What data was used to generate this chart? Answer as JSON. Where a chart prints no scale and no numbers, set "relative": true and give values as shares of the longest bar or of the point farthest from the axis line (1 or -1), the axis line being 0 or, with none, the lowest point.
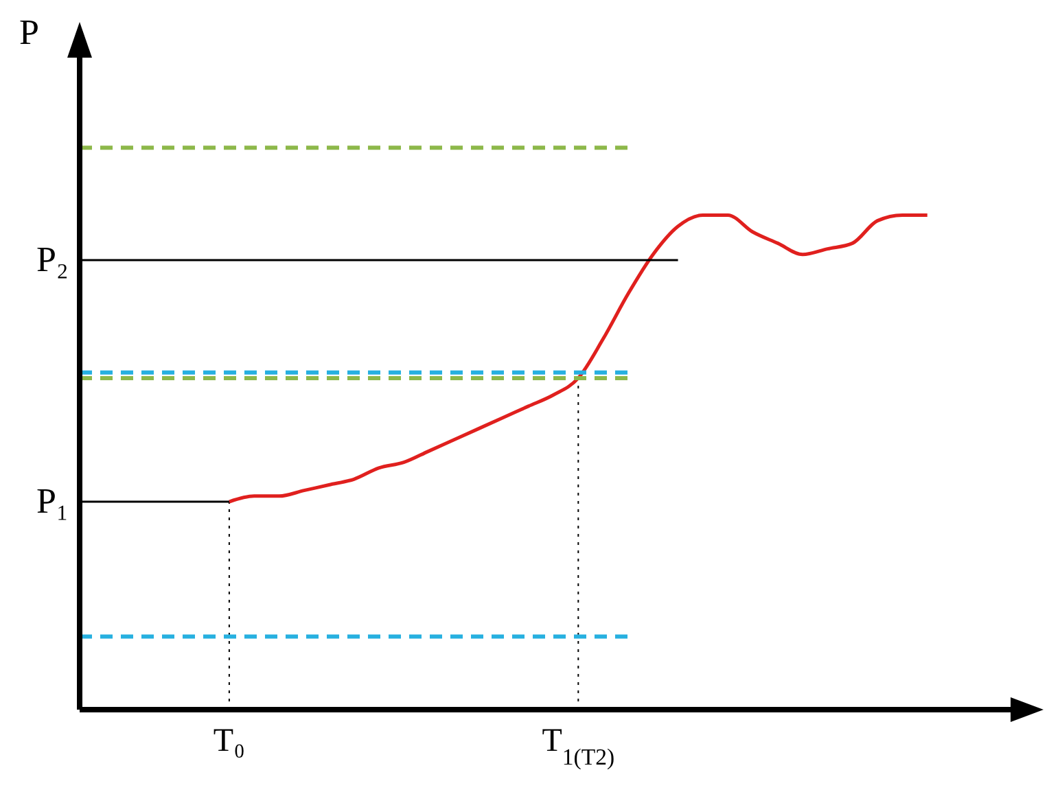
{
  "chart_data": {
    "type": "line",
    "relative": true,
    "marker": "none",
    "ylabel": "P",
    "categories": [
      null,
      null,
      null,
      null,
      null,
      null,
      "T₀",
      null,
      null,
      null,
      null,
      null,
      null,
      null,
      null,
      null,
      null,
      null,
      null,
      null,
      "T$_{1(T2)}$",
      null,
      null,
      null,
      null,
      null,
      null,
      null,
      null,
      null,
      null,
      null,
      null,
      null,
      null,
      null,
      null,
      null,
      null
    ],
    "series": [
      {
        "color": "#e0201e",
        "line_style": "solid",
        "values": [
          null,
          null,
          null,
          null,
          null,
          null,
          0.37,
          0.38,
          0.38,
          0.39,
          0.4,
          0.41,
          0.43,
          0.44,
          0.46,
          0.48,
          0.5,
          0.52,
          0.54,
          0.56,
          0.59,
          0.66,
          0.74,
          0.81,
          0.86,
          0.88,
          0.88,
          0.85,
          0.83,
          0.81,
          0.82,
          0.83,
          0.87,
          0.88,
          0.88,
          null,
          null,
          null,
          null
        ]
      },
      {
        "name": "P₁",
        "color": "#000000",
        "line_style": "solid",
        "values": [
          0.37,
          0.37,
          0.37,
          0.37,
          0.37,
          0.37,
          0.37,
          null,
          null,
          null,
          null,
          null,
          null,
          null,
          null,
          null,
          null,
          null,
          null,
          null,
          null,
          null,
          null,
          null,
          null,
          null,
          null,
          null,
          null,
          null,
          null,
          null,
          null,
          null,
          null,
          null,
          null,
          null,
          null
        ]
      },
      {
        "name": "P₂",
        "color": "#000000",
        "line_style": "solid",
        "values": [
          0.8,
          0.8,
          0.8,
          0.8,
          0.8,
          0.8,
          0.8,
          0.8,
          0.8,
          0.8,
          0.8,
          0.8,
          0.8,
          0.8,
          0.8,
          0.8,
          0.8,
          0.8,
          0.8,
          0.8,
          0.8,
          0.8,
          0.8,
          0.8,
          0.8,
          null,
          null,
          null,
          null,
          null,
          null,
          null,
          null,
          null,
          null,
          null,
          null,
          null,
          null
        ]
      },
      {
        "color": "#8db84a",
        "line_style": "dashed",
        "values": [
          1.0,
          1.0,
          1.0,
          1.0,
          1.0,
          1.0,
          1.0,
          1.0,
          1.0,
          1.0,
          1.0,
          1.0,
          1.0,
          1.0,
          1.0,
          1.0,
          1.0,
          1.0,
          1.0,
          1.0,
          1.0,
          1.0,
          1.0,
          null,
          null,
          null,
          null,
          null,
          null,
          null,
          null,
          null,
          null,
          null,
          null,
          null,
          null,
          null,
          null
        ]
      },
      {
        "color": "#8db84a",
        "line_style": "dashed",
        "values": [
          0.59,
          0.59,
          0.59,
          0.59,
          0.59,
          0.59,
          0.59,
          0.59,
          0.59,
          0.59,
          0.59,
          0.59,
          0.59,
          0.59,
          0.59,
          0.59,
          0.59,
          0.59,
          0.59,
          0.59,
          0.59,
          0.59,
          0.59,
          null,
          null,
          null,
          null,
          null,
          null,
          null,
          null,
          null,
          null,
          null,
          null,
          null,
          null,
          null,
          null
        ]
      },
      {
        "color": "#27b0e0",
        "line_style": "dashed",
        "values": [
          0.6,
          0.6,
          0.6,
          0.6,
          0.6,
          0.6,
          0.6,
          0.6,
          0.6,
          0.6,
          0.6,
          0.6,
          0.6,
          0.6,
          0.6,
          0.6,
          0.6,
          0.6,
          0.6,
          0.6,
          0.6,
          0.6,
          0.6,
          null,
          null,
          null,
          null,
          null,
          null,
          null,
          null,
          null,
          null,
          null,
          null,
          null,
          null,
          null,
          null
        ]
      },
      {
        "color": "#27b0e0",
        "line_style": "dashed",
        "values": [
          0.13,
          0.13,
          0.13,
          0.13,
          0.13,
          0.13,
          0.13,
          0.13,
          0.13,
          0.13,
          0.13,
          0.13,
          0.13,
          0.13,
          0.13,
          0.13,
          0.13,
          0.13,
          0.13,
          0.13,
          0.13,
          0.13,
          0.13,
          null,
          null,
          null,
          null,
          null,
          null,
          null,
          null,
          null,
          null,
          null,
          null,
          null,
          null,
          null,
          null
        ]
      }
    ],
    "ref_lines": [
      {
        "axis": "x",
        "value": "T₀",
        "color": "#000000",
        "line_style": "dotted"
      },
      {
        "axis": "x",
        "value": "T$_{1(T2)}$",
        "color": "#000000",
        "line_style": "dotted"
      }
    ]
  }
}
